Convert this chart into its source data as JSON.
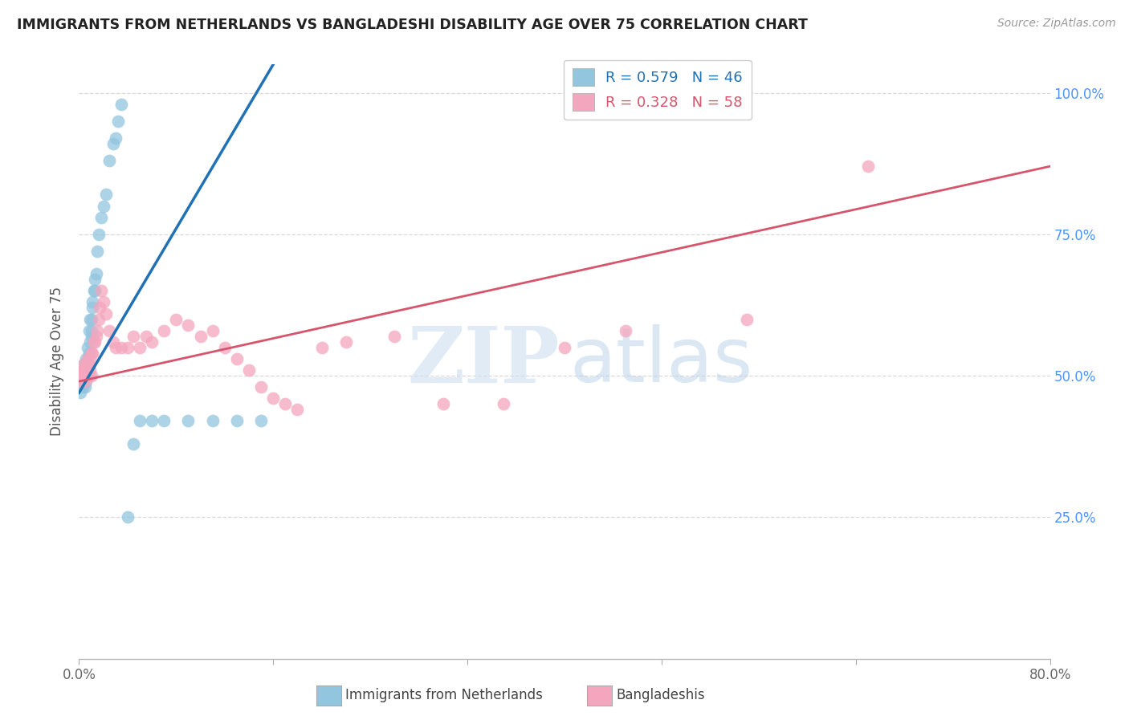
{
  "title": "IMMIGRANTS FROM NETHERLANDS VS BANGLADESHI DISABILITY AGE OVER 75 CORRELATION CHART",
  "source": "Source: ZipAtlas.com",
  "ylabel": "Disability Age Over 75",
  "legend_label1": "R = 0.579   N = 46",
  "legend_label2": "R = 0.328   N = 58",
  "legend_bottom1": "Immigrants from Netherlands",
  "legend_bottom2": "Bangladeshis",
  "watermark_zip": "ZIP",
  "watermark_atlas": "atlas",
  "blue_scatter_color": "#92c5de",
  "pink_scatter_color": "#f4a6be",
  "blue_line_color": "#2171b5",
  "pink_line_color": "#d6556d",
  "background_color": "#ffffff",
  "grid_color": "#d9d9d9",
  "title_color": "#222222",
  "axis_label_color": "#555555",
  "right_axis_color": "#4d94ff",
  "xlim": [
    0.0,
    0.8
  ],
  "ylim": [
    0.0,
    1.05
  ],
  "x_ticks": [
    0.0,
    0.16,
    0.32,
    0.48,
    0.64,
    0.8
  ],
  "y_ticks": [
    0.25,
    0.5,
    0.75,
    1.0
  ],
  "nl_line_x0": 0.0,
  "nl_line_y0": 0.47,
  "nl_line_x1": 0.16,
  "nl_line_y1": 1.05,
  "bd_line_x0": 0.0,
  "bd_line_y0": 0.49,
  "bd_line_x1": 0.8,
  "bd_line_y1": 0.87,
  "nl_x": [
    0.001,
    0.002,
    0.002,
    0.003,
    0.003,
    0.004,
    0.004,
    0.005,
    0.005,
    0.006,
    0.006,
    0.006,
    0.007,
    0.007,
    0.008,
    0.008,
    0.009,
    0.009,
    0.01,
    0.01,
    0.01,
    0.011,
    0.011,
    0.012,
    0.013,
    0.013,
    0.014,
    0.015,
    0.016,
    0.018,
    0.02,
    0.022,
    0.025,
    0.028,
    0.03,
    0.032,
    0.035,
    0.04,
    0.045,
    0.05,
    0.06,
    0.07,
    0.09,
    0.11,
    0.13,
    0.15
  ],
  "nl_y": [
    0.47,
    0.5,
    0.5,
    0.48,
    0.51,
    0.49,
    0.52,
    0.5,
    0.48,
    0.51,
    0.53,
    0.49,
    0.52,
    0.55,
    0.54,
    0.58,
    0.56,
    0.6,
    0.57,
    0.6,
    0.58,
    0.63,
    0.62,
    0.65,
    0.67,
    0.65,
    0.68,
    0.72,
    0.75,
    0.78,
    0.8,
    0.82,
    0.88,
    0.91,
    0.92,
    0.95,
    0.98,
    0.25,
    0.38,
    0.42,
    0.42,
    0.42,
    0.42,
    0.42,
    0.42,
    0.42
  ],
  "bd_x": [
    0.001,
    0.002,
    0.003,
    0.003,
    0.004,
    0.004,
    0.005,
    0.005,
    0.006,
    0.006,
    0.007,
    0.007,
    0.008,
    0.008,
    0.009,
    0.009,
    0.01,
    0.01,
    0.011,
    0.012,
    0.013,
    0.014,
    0.015,
    0.016,
    0.017,
    0.018,
    0.02,
    0.022,
    0.025,
    0.028,
    0.03,
    0.035,
    0.04,
    0.045,
    0.05,
    0.055,
    0.06,
    0.07,
    0.08,
    0.09,
    0.1,
    0.11,
    0.12,
    0.13,
    0.14,
    0.15,
    0.16,
    0.17,
    0.18,
    0.2,
    0.22,
    0.26,
    0.3,
    0.35,
    0.4,
    0.45,
    0.55,
    0.65
  ],
  "bd_y": [
    0.5,
    0.49,
    0.5,
    0.51,
    0.5,
    0.52,
    0.49,
    0.51,
    0.5,
    0.52,
    0.51,
    0.53,
    0.5,
    0.52,
    0.51,
    0.53,
    0.5,
    0.54,
    0.54,
    0.56,
    0.56,
    0.57,
    0.58,
    0.6,
    0.62,
    0.65,
    0.63,
    0.61,
    0.58,
    0.56,
    0.55,
    0.55,
    0.55,
    0.57,
    0.55,
    0.57,
    0.56,
    0.58,
    0.6,
    0.59,
    0.57,
    0.58,
    0.55,
    0.53,
    0.51,
    0.48,
    0.46,
    0.45,
    0.44,
    0.55,
    0.56,
    0.57,
    0.45,
    0.45,
    0.55,
    0.58,
    0.6,
    0.87
  ]
}
